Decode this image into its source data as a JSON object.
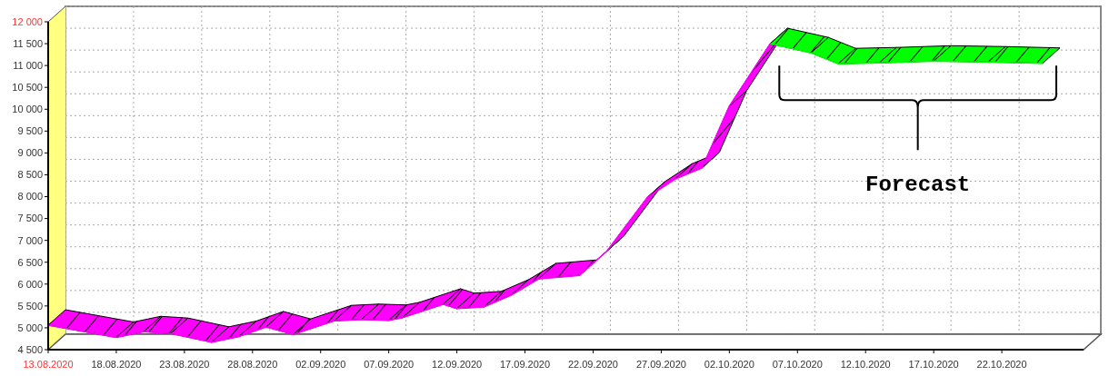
{
  "chart_data": {
    "type": "line",
    "grid": true,
    "xlim": [
      "2020-08-13",
      "2020-10-28"
    ],
    "xticks": [
      {
        "value": "2020-08-13",
        "label": "13.08.2020"
      },
      {
        "value": "2020-08-18",
        "label": "18.08.2020"
      },
      {
        "value": "2020-08-23",
        "label": "23.08.2020"
      },
      {
        "value": "2020-08-28",
        "label": "28.08.2020"
      },
      {
        "value": "2020-09-02",
        "label": "02.09.2020"
      },
      {
        "value": "2020-09-07",
        "label": "07.09.2020"
      },
      {
        "value": "2020-09-12",
        "label": "12.09.2020"
      },
      {
        "value": "2020-09-17",
        "label": "17.09.2020"
      },
      {
        "value": "2020-09-22",
        "label": "22.09.2020"
      },
      {
        "value": "2020-09-27",
        "label": "27.09.2020"
      },
      {
        "value": "2020-10-02",
        "label": "02.10.2020"
      },
      {
        "value": "2020-10-07",
        "label": "07.10.2020"
      },
      {
        "value": "2020-10-12",
        "label": "12.10.2020"
      },
      {
        "value": "2020-10-17",
        "label": "17.10.2020"
      },
      {
        "value": "2020-10-22",
        "label": "22.10.2020"
      }
    ],
    "ylim": [
      4500,
      12000
    ],
    "yticks": [
      {
        "value": 4500,
        "label": "4 500"
      },
      {
        "value": 5000,
        "label": "5 000"
      },
      {
        "value": 5500,
        "label": "5 500"
      },
      {
        "value": 6000,
        "label": "6 000"
      },
      {
        "value": 6500,
        "label": "6 500"
      },
      {
        "value": 7000,
        "label": "7 000"
      },
      {
        "value": 7500,
        "label": "7 500"
      },
      {
        "value": 8000,
        "label": "8 000"
      },
      {
        "value": 8500,
        "label": "8 500"
      },
      {
        "value": 9000,
        "label": "9 000"
      },
      {
        "value": 9500,
        "label": "9 500"
      },
      {
        "value": 10000,
        "label": "10 000"
      },
      {
        "value": 10500,
        "label": "10 500"
      },
      {
        "value": 11000,
        "label": "11 000"
      },
      {
        "value": 11500,
        "label": "11 500"
      },
      {
        "value": 12000,
        "label": "12 000"
      }
    ],
    "series": [
      {
        "color": "#ff00ff",
        "x": [
          "2020-08-13",
          "2020-08-18",
          "2020-08-20",
          "2020-08-22",
          "2020-08-25",
          "2020-08-27",
          "2020-08-29",
          "2020-08-31",
          "2020-09-03",
          "2020-09-05",
          "2020-09-07",
          "2020-09-08",
          "2020-09-11",
          "2020-09-12",
          "2020-09-14",
          "2020-09-16",
          "2020-09-18",
          "2020-09-21",
          "2020-09-23",
          "2020-09-26",
          "2020-09-28",
          "2020-09-30",
          "2020-10-02",
          "2020-10-05"
        ],
        "values": [
          5060,
          4780,
          4910,
          4870,
          4670,
          4800,
          5020,
          4850,
          5160,
          5190,
          5170,
          5230,
          5540,
          5440,
          5480,
          5750,
          6120,
          6200,
          6750,
          7990,
          8400,
          8660,
          10070,
          11500
        ]
      },
      {
        "color": "#00ff00",
        "x": [
          "2020-10-05",
          "2020-10-08",
          "2020-10-10",
          "2020-10-13",
          "2020-10-17",
          "2020-10-21",
          "2020-10-25"
        ],
        "values": [
          11500,
          11290,
          11040,
          11060,
          11100,
          11080,
          11050
        ]
      }
    ],
    "annotations": [
      "Forecast"
    ]
  }
}
